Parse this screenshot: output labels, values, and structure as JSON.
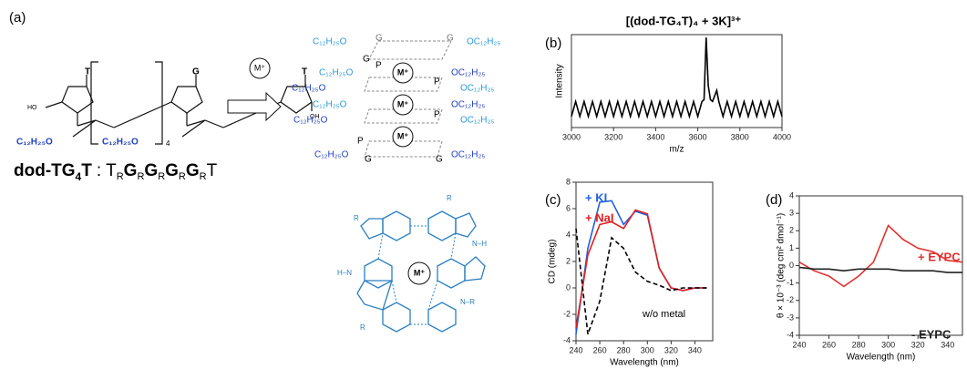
{
  "panel_a": {
    "panel_label": "(a)",
    "labels": [
      "T",
      "G",
      "T",
      "HO",
      "OH",
      "C₁₂H₂₅O",
      "C₁₂H₂₅O",
      "4",
      "M⁺",
      "M⁺",
      "M⁺",
      "M⁺",
      "C₁₂H₂₅O",
      "C₁₂H₂₅O",
      "C₁₂H₂₅O",
      "C₁₂H₂₅O",
      "C₁₂H₂₅O",
      "C₁₂H₂₅O",
      "OC₁₂H₂₅",
      "OC₁₂H₂₅",
      "OC₁₂H₂₅",
      "OC₁₂H₂₅",
      "OC₁₂H₂₅",
      "OC₁₂H₂₅",
      "G",
      "G",
      "G",
      "P",
      "P",
      "P",
      "P",
      "G",
      "G",
      "M⁺",
      "R",
      "R",
      "N–H",
      "H–N",
      "N–R",
      "R"
    ],
    "name": [
      "dod-TG",
      "4",
      "T"
    ],
    "separator": ":",
    "sequence": [
      "T",
      "R",
      "G",
      "R",
      "G",
      "R",
      "G",
      "R",
      "G",
      "R",
      "T"
    ]
  },
  "chart_data": [
    {
      "type": "line",
      "panel_label": "(b)",
      "annotation": "[(dod-TG₄T)₄ + 3K]³⁺",
      "x_label": "m/z",
      "y_label": "Intensity",
      "xlim": [
        3000,
        4000
      ],
      "xticks": [
        3000,
        3200,
        3400,
        3600,
        3800,
        4000
      ],
      "ylim": [
        0,
        1
      ],
      "x": [
        3000,
        3020,
        3040,
        3060,
        3080,
        3100,
        3120,
        3140,
        3160,
        3180,
        3200,
        3220,
        3240,
        3260,
        3280,
        3300,
        3320,
        3340,
        3360,
        3380,
        3400,
        3420,
        3440,
        3460,
        3480,
        3500,
        3520,
        3540,
        3560,
        3580,
        3600,
        3620,
        3630,
        3640,
        3650,
        3660,
        3670,
        3680,
        3690,
        3700,
        3720,
        3740,
        3760,
        3780,
        3800,
        3820,
        3840,
        3860,
        3880,
        3900,
        3920,
        3940,
        3960,
        3980,
        4000
      ],
      "series": [
        {
          "color": "#000000",
          "values": [
            0.12,
            0.28,
            0.12,
            0.28,
            0.12,
            0.28,
            0.12,
            0.28,
            0.12,
            0.28,
            0.12,
            0.28,
            0.12,
            0.28,
            0.12,
            0.28,
            0.12,
            0.28,
            0.12,
            0.28,
            0.12,
            0.28,
            0.12,
            0.28,
            0.12,
            0.28,
            0.12,
            0.28,
            0.12,
            0.28,
            0.12,
            0.28,
            0.3,
            0.97,
            0.45,
            0.3,
            0.28,
            0.34,
            0.4,
            0.28,
            0.12,
            0.28,
            0.12,
            0.28,
            0.12,
            0.28,
            0.12,
            0.28,
            0.12,
            0.28,
            0.12,
            0.28,
            0.12,
            0.28,
            0.12
          ]
        }
      ]
    },
    {
      "type": "line",
      "panel_label": "(c)",
      "x_label": "Wavelength (nm)",
      "y_label": "CD (mdeg)",
      "xlim": [
        240,
        355
      ],
      "xticks": [
        240,
        260,
        280,
        300,
        320,
        340
      ],
      "ylim": [
        -4,
        8
      ],
      "yticks": [
        -4,
        -2,
        0,
        2,
        4,
        6,
        8
      ],
      "x": [
        240,
        250,
        260,
        270,
        280,
        290,
        300,
        310,
        320,
        330,
        340,
        350
      ],
      "series": [
        {
          "name": "+ KI",
          "color": "#2060e0",
          "values": [
            -3.5,
            3,
            6.5,
            6.6,
            4.8,
            5.8,
            5.5,
            1.5,
            0,
            -0.2,
            0,
            0
          ]
        },
        {
          "name": "+ NaI",
          "color": "#e02020",
          "values": [
            -3,
            2.5,
            4.8,
            5,
            4.5,
            5.9,
            5.6,
            1.5,
            0,
            -0.2,
            0,
            0
          ]
        },
        {
          "name": "w/o metal",
          "color": "#000000",
          "dashed": true,
          "values": [
            4.5,
            -3.5,
            -1,
            3.8,
            3,
            1.2,
            0.5,
            0.2,
            -0.2,
            0,
            0,
            0
          ]
        }
      ]
    },
    {
      "type": "line",
      "panel_label": "(d)",
      "x_label": "Wavelength (nm)",
      "y_label": "θ × 10⁻³ (deg cm² dmol⁻¹)",
      "xlim": [
        240,
        350
      ],
      "xticks": [
        240,
        260,
        280,
        300,
        320,
        340
      ],
      "ylim": [
        -4,
        4
      ],
      "yticks": [
        -4,
        -3,
        -2,
        -1,
        0,
        1,
        2,
        3,
        4
      ],
      "x": [
        240,
        250,
        260,
        270,
        280,
        290,
        300,
        310,
        320,
        330,
        340,
        350
      ],
      "series": [
        {
          "name": "+ EYPC",
          "color": "#e03030",
          "values": [
            0.2,
            -0.3,
            -0.6,
            -1.2,
            -0.6,
            0.2,
            2.3,
            1.5,
            1,
            0.8,
            0.3,
            0.2
          ]
        },
        {
          "name": "- EYPC",
          "color": "#222222",
          "values": [
            -0.1,
            -0.2,
            -0.2,
            -0.3,
            -0.2,
            -0.2,
            -0.2,
            -0.3,
            -0.3,
            -0.3,
            -0.4,
            -0.4
          ]
        }
      ]
    }
  ]
}
